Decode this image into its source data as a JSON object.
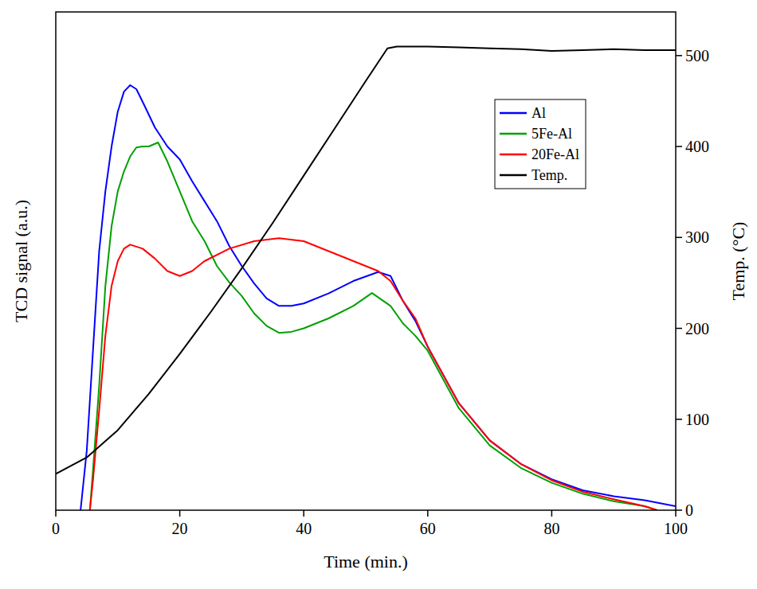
{
  "chart_data": {
    "type": "line",
    "x_label": "Time (min.)",
    "y_label": "TCD signal (a.u.)",
    "y2_label": "Temp. (°C)",
    "xlim": [
      0,
      100
    ],
    "xticks": [
      0,
      20,
      40,
      60,
      80,
      100
    ],
    "ylim": [
      0,
      100
    ],
    "y2lim": [
      0,
      548
    ],
    "y2ticks": [
      0,
      100,
      200,
      300,
      400,
      500
    ],
    "legend": "upper right",
    "grid": false,
    "series": [
      {
        "name": "Al",
        "color": "#0000ff",
        "x": [
          4,
          5,
          6,
          7,
          8,
          9,
          10,
          11,
          12,
          13,
          14,
          16,
          18,
          20,
          22,
          24,
          26,
          28,
          30,
          32,
          34,
          36,
          38,
          40,
          44,
          48,
          52,
          54,
          56,
          58,
          60,
          65,
          70,
          75,
          80,
          85,
          90,
          95,
          100
        ],
        "values": [
          0,
          12,
          32,
          52,
          64,
          73,
          80,
          84,
          85.3,
          84.5,
          82,
          76.8,
          73,
          70.4,
          66,
          62,
          58,
          53,
          49,
          45.5,
          42.5,
          41,
          41,
          41.5,
          43.5,
          46,
          47.8,
          47,
          42,
          38,
          32.8,
          21.5,
          14,
          9.3,
          6.2,
          4,
          2.8,
          2,
          0.8
        ]
      },
      {
        "name": "5Fe-Al",
        "color": "#00a000",
        "x": [
          5.5,
          6,
          7,
          8,
          9,
          10,
          11,
          12,
          13,
          14,
          15,
          16.5,
          18,
          20,
          22,
          24,
          26,
          28,
          30,
          32,
          34,
          36,
          38,
          40,
          44,
          48,
          51,
          54,
          56,
          58,
          60,
          65,
          70,
          75,
          80,
          85,
          90,
          95,
          97
        ],
        "values": [
          0,
          8,
          25,
          45,
          57,
          64,
          68,
          71,
          72.8,
          73,
          73,
          73.8,
          70,
          64,
          58,
          54,
          49,
          45.7,
          43,
          39.5,
          37,
          35.6,
          35.8,
          36.5,
          38.5,
          41,
          43.6,
          41,
          37.5,
          35,
          32,
          20.5,
          13,
          8.5,
          5.5,
          3.3,
          1.8,
          0.8,
          0
        ]
      },
      {
        "name": "20Fe-Al",
        "color": "#ff0000",
        "x": [
          5.5,
          6,
          7,
          8,
          9,
          10,
          11,
          12,
          14,
          16,
          18,
          20,
          22,
          24,
          28,
          32,
          36,
          40,
          44,
          48,
          52,
          54,
          56,
          58,
          60,
          65,
          70,
          75,
          80,
          85,
          90,
          95,
          97
        ],
        "values": [
          0,
          6,
          20,
          35,
          45,
          50,
          52.5,
          53.3,
          52.5,
          50.5,
          48,
          47,
          48,
          50,
          52.5,
          54,
          54.6,
          54,
          52,
          50,
          48,
          46,
          42,
          38.5,
          32.8,
          21.5,
          14,
          9.3,
          6,
          3.7,
          2.2,
          0.8,
          0
        ]
      },
      {
        "name": "Temp.",
        "color": "#000000",
        "axis": "y2",
        "x": [
          0,
          5,
          10,
          15,
          20,
          25,
          30,
          35,
          40,
          45,
          50,
          53.5,
          55,
          60,
          65,
          70,
          75,
          80,
          85,
          90,
          95,
          100
        ],
        "values": [
          40,
          58,
          88,
          128,
          172,
          218,
          266,
          316,
          368,
          420,
          472,
          508,
          510,
          510,
          509,
          508,
          507,
          505,
          506,
          507,
          506,
          506
        ]
      }
    ]
  }
}
